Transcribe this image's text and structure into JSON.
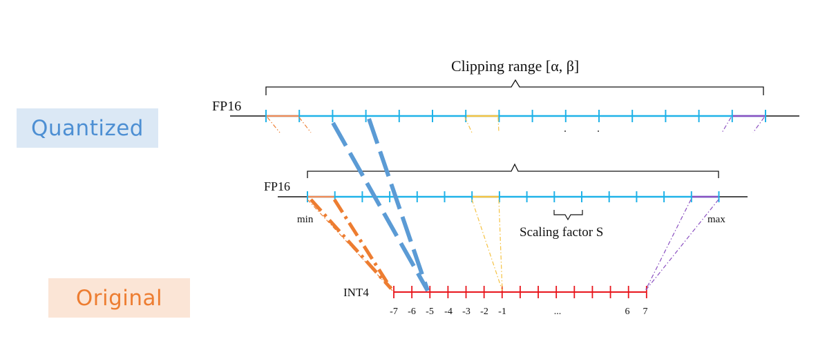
{
  "labels": {
    "quantized": "Quantized",
    "original": "Original"
  },
  "diagram": {
    "clipping_range": "Clipping range [α, β]",
    "fp16_top": "FP16",
    "fp16_mid": "FP16",
    "min": "min",
    "max": "max",
    "scaling_factor": "Scaling factor S",
    "int4": "INT4",
    "int4_ticks": [
      "-7",
      "-6",
      "-5",
      "-4",
      "-3",
      "-2",
      "-1",
      "...",
      "6",
      "7"
    ]
  },
  "colors": {
    "tick_blue": "#1fb2e8",
    "arrow_blue": "#5b9bd5",
    "arrow_orange": "#ed7d31",
    "segment_orange": "#ef8a56",
    "segment_yellow": "#f5c242",
    "segment_purple": "#8a4fc0",
    "int4_red": "#e8151b"
  }
}
